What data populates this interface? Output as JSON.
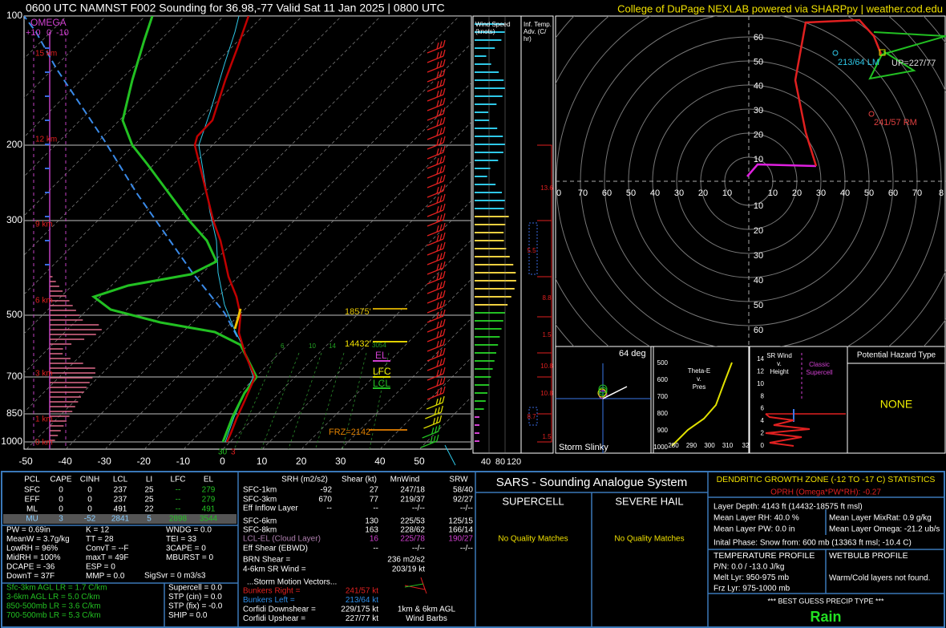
{
  "header": {
    "title": "0600 UTC NAMNST F002 Sounding for 36.98,-77  Valid  Sat 11 Jan 2025 | 0800 UTC",
    "credit": "College of DuPage NEXLAB powered via SHARPpy | weather.cod.edu"
  },
  "skewt": {
    "pressure_labels": [
      "100",
      "200",
      "300",
      "500",
      "700",
      "850",
      "1000"
    ],
    "temperature_labels": [
      "-50",
      "-40",
      "-30",
      "-20",
      "-10",
      "0",
      "10",
      "20",
      "30",
      "40",
      "50"
    ],
    "height_labels": [
      "15 km",
      "12 km",
      "9 km",
      "6 km",
      "3 km",
      "1 km",
      "0 km"
    ],
    "omega": {
      "title": "OMEGA",
      "ticks": [
        "+10",
        "0",
        "-10"
      ]
    },
    "mixing_ratio_labels": [
      "6",
      "10",
      "14"
    ],
    "annotations": {
      "el_height": "18575'",
      "lfc_height": "14432'",
      "lfc_note": "3054",
      "el": "EL",
      "lfc": "LFC",
      "lcl": "LCL",
      "freezing_level": "FRZ=2142'",
      "surface_temperature": "30",
      "surface_dewpoint": "3"
    }
  },
  "wind_speed": {
    "title_lines": [
      "Wind Speed",
      "(knots)"
    ],
    "axis_labels": [
      "40",
      "80",
      "120"
    ]
  },
  "temperature_advection": {
    "title_lines": [
      "Inf. Temp.",
      "Adv. (C/",
      "hr)"
    ],
    "values": [
      "13.6",
      "5.5",
      "8.8",
      "1.5",
      "10.8",
      "10.8",
      "8.7",
      "1.5"
    ]
  },
  "hodograph": {
    "x_labels": [
      "0",
      "70",
      "60",
      "50",
      "40",
      "30",
      "20",
      "10",
      "10",
      "20",
      "30",
      "40",
      "50",
      "60",
      "70",
      "8"
    ],
    "y_labels_upper": [
      "60",
      "50",
      "40",
      "30",
      "20",
      "10"
    ],
    "y_labels_lower": [
      "10",
      "20",
      "30",
      "40",
      "50",
      "60"
    ],
    "annotations": {
      "left_mover": "213/64 LM",
      "right_mover": "241/57 RM",
      "upshear": "UP=227/77"
    }
  },
  "storm_slinky": {
    "angle": "64 deg",
    "title": "Storm Slinky"
  },
  "theta_e": {
    "title_lines": [
      "Theta-E",
      "v.",
      "Pres"
    ],
    "y_labels": [
      "500",
      "600",
      "700",
      "800",
      "900",
      "1000"
    ],
    "x_labels": [
      "280",
      "290",
      "300",
      "310",
      "32"
    ]
  },
  "sr_wind": {
    "title_lines": [
      "SR Wind",
      "v.",
      "Height"
    ],
    "y_labels": [
      "14",
      "12",
      "10",
      "8",
      "6",
      "4",
      "2",
      "0"
    ],
    "note_lines": [
      "Classic",
      "Supercell"
    ]
  },
  "hazard": {
    "title": "Potential Hazard Type",
    "value": "NONE"
  },
  "parcels": {
    "headers": [
      "PCL",
      "CAPE",
      "CINH",
      "LCL",
      "LI",
      "LFC",
      "EL"
    ],
    "rows": [
      [
        "SFC",
        "0",
        "0",
        "237",
        "25",
        "--",
        "279"
      ],
      [
        "EFF",
        "0",
        "0",
        "237",
        "25",
        "--",
        "279"
      ],
      [
        "ML",
        "0",
        "0",
        "491",
        "22",
        "--",
        "491"
      ],
      [
        "MU",
        "3",
        "-52",
        "2841",
        "5",
        "2898",
        "3544"
      ]
    ]
  },
  "indices": {
    "column_1": [
      "PW = 0.69in",
      "MeanW = 3.7g/kg",
      "LowRH = 96%",
      "MidRH = 100%",
      "DCAPE = -36",
      "DownT = 37F"
    ],
    "column_2": [
      "K = 12",
      "TT = 28",
      "ConvT = --F",
      "maxT = 49F",
      "ESP = 0",
      "MMP = 0.0"
    ],
    "column_3": [
      "WNDG = 0.0",
      "TEI = 33",
      "3CAPE = 0",
      "MBURST = 0"
    ],
    "sig_severe": "SigSvr = 0 m3/s3"
  },
  "lapse_rates": [
    "Sfc-3km AGL LR = 1.7 C/km",
    "3-6km AGL LR = 5.0 C/km",
    "850-500mb LR = 3.6 C/km",
    "700-500mb LR = 5.3 C/km"
  ],
  "composites": [
    "Supercell = 0.0",
    "STP (cin) = 0.0",
    "STP (fix) = -0.0",
    "SHIP = 0.0"
  ],
  "kinematics": {
    "headers": [
      "SRH (m2/s2)",
      "Shear (kt)",
      "MnWind",
      "SRW"
    ],
    "rows": [
      {
        "label": "SFC-1km",
        "srh": "-92",
        "shear": "27",
        "mean_wind": "247/18",
        "srw": "58/40"
      },
      {
        "label": "SFC-3km",
        "srh": "670",
        "shear": "77",
        "mean_wind": "219/37",
        "srw": "92/27"
      },
      {
        "label": "Eff Inflow Layer",
        "srh": "--",
        "shear": "--",
        "mean_wind": "--/--",
        "srw": "--/--"
      },
      {
        "label": "SFC-6km",
        "shear": "130",
        "mean_wind": "225/53",
        "srw": "125/15"
      },
      {
        "label": "SFC-8km",
        "shear": "163",
        "mean_wind": "228/62",
        "srw": "166/14"
      },
      {
        "label": "LCL-EL (Cloud Layer)",
        "shear": "16",
        "mean_wind": "225/78",
        "srw": "190/27"
      },
      {
        "label": "Eff Shear (EBWD)",
        "shear": "--",
        "mean_wind": "--/--",
        "srw": "--/--"
      }
    ],
    "brn_shear": {
      "label": "BRN Shear =",
      "value": "236 m2/s2"
    },
    "sr_wind_4_6km": {
      "label": "4-6km SR Wind =",
      "value": "203/19 kt"
    },
    "storm_motion_title": "...Storm Motion Vectors...",
    "storm_motion": [
      {
        "label": "Bunkers Right =",
        "value": "241/57 kt"
      },
      {
        "label": "Bunkers Left =",
        "value": "213/64 kt"
      },
      {
        "label": "Corfidi Downshear =",
        "value": "229/175 kt"
      },
      {
        "label": "Corfidi Upshear =",
        "value": "227/77 kt"
      }
    ],
    "barb_note_lines": [
      "1km & 6km AGL",
      "Wind Barbs"
    ]
  },
  "sars": {
    "title": "SARS - Sounding Analogue System",
    "supercell": "SUPERCELL",
    "hail": "SEVERE HAIL",
    "supercell_result": "No Quality Matches",
    "hail_result": "No Quality Matches"
  },
  "dgz": {
    "title": "DENDRITIC GROWTH ZONE (-12 TO -17 C) STATISTICS",
    "oprh": "OPRH (Omega*PW*RH): -0.27",
    "layer_depth": "Layer Depth: 4143 ft (14432-18575 ft msl)",
    "mean_rh": "Mean Layer RH: 40.0 %",
    "mean_mixrat": "Mean Layer MixRat: 0.9 g/kg",
    "mean_pw": "Mean Layer PW: 0.0 in",
    "mean_omega": "Mean Layer Omega: -21.2 ub/s",
    "initial_phase": "Inital Phase: Snow from: 600 mb (13363 ft msl; -10.4 C)",
    "temperature_profile": {
      "title": "TEMPERATURE PROFILE",
      "lines": [
        "P/N: 0.0 / -13.0 J/kg",
        "Melt Lyr: 950-975 mb",
        "Frz Lyr: 975-1000 mb"
      ]
    },
    "wetbulb_profile": {
      "title": "WETBULB PROFILE",
      "lines": [
        "Warm/Cold layers not found."
      ]
    },
    "precip_title": "*** BEST GUESS PRECIP TYPE ***",
    "precip_type": "Rain"
  }
}
